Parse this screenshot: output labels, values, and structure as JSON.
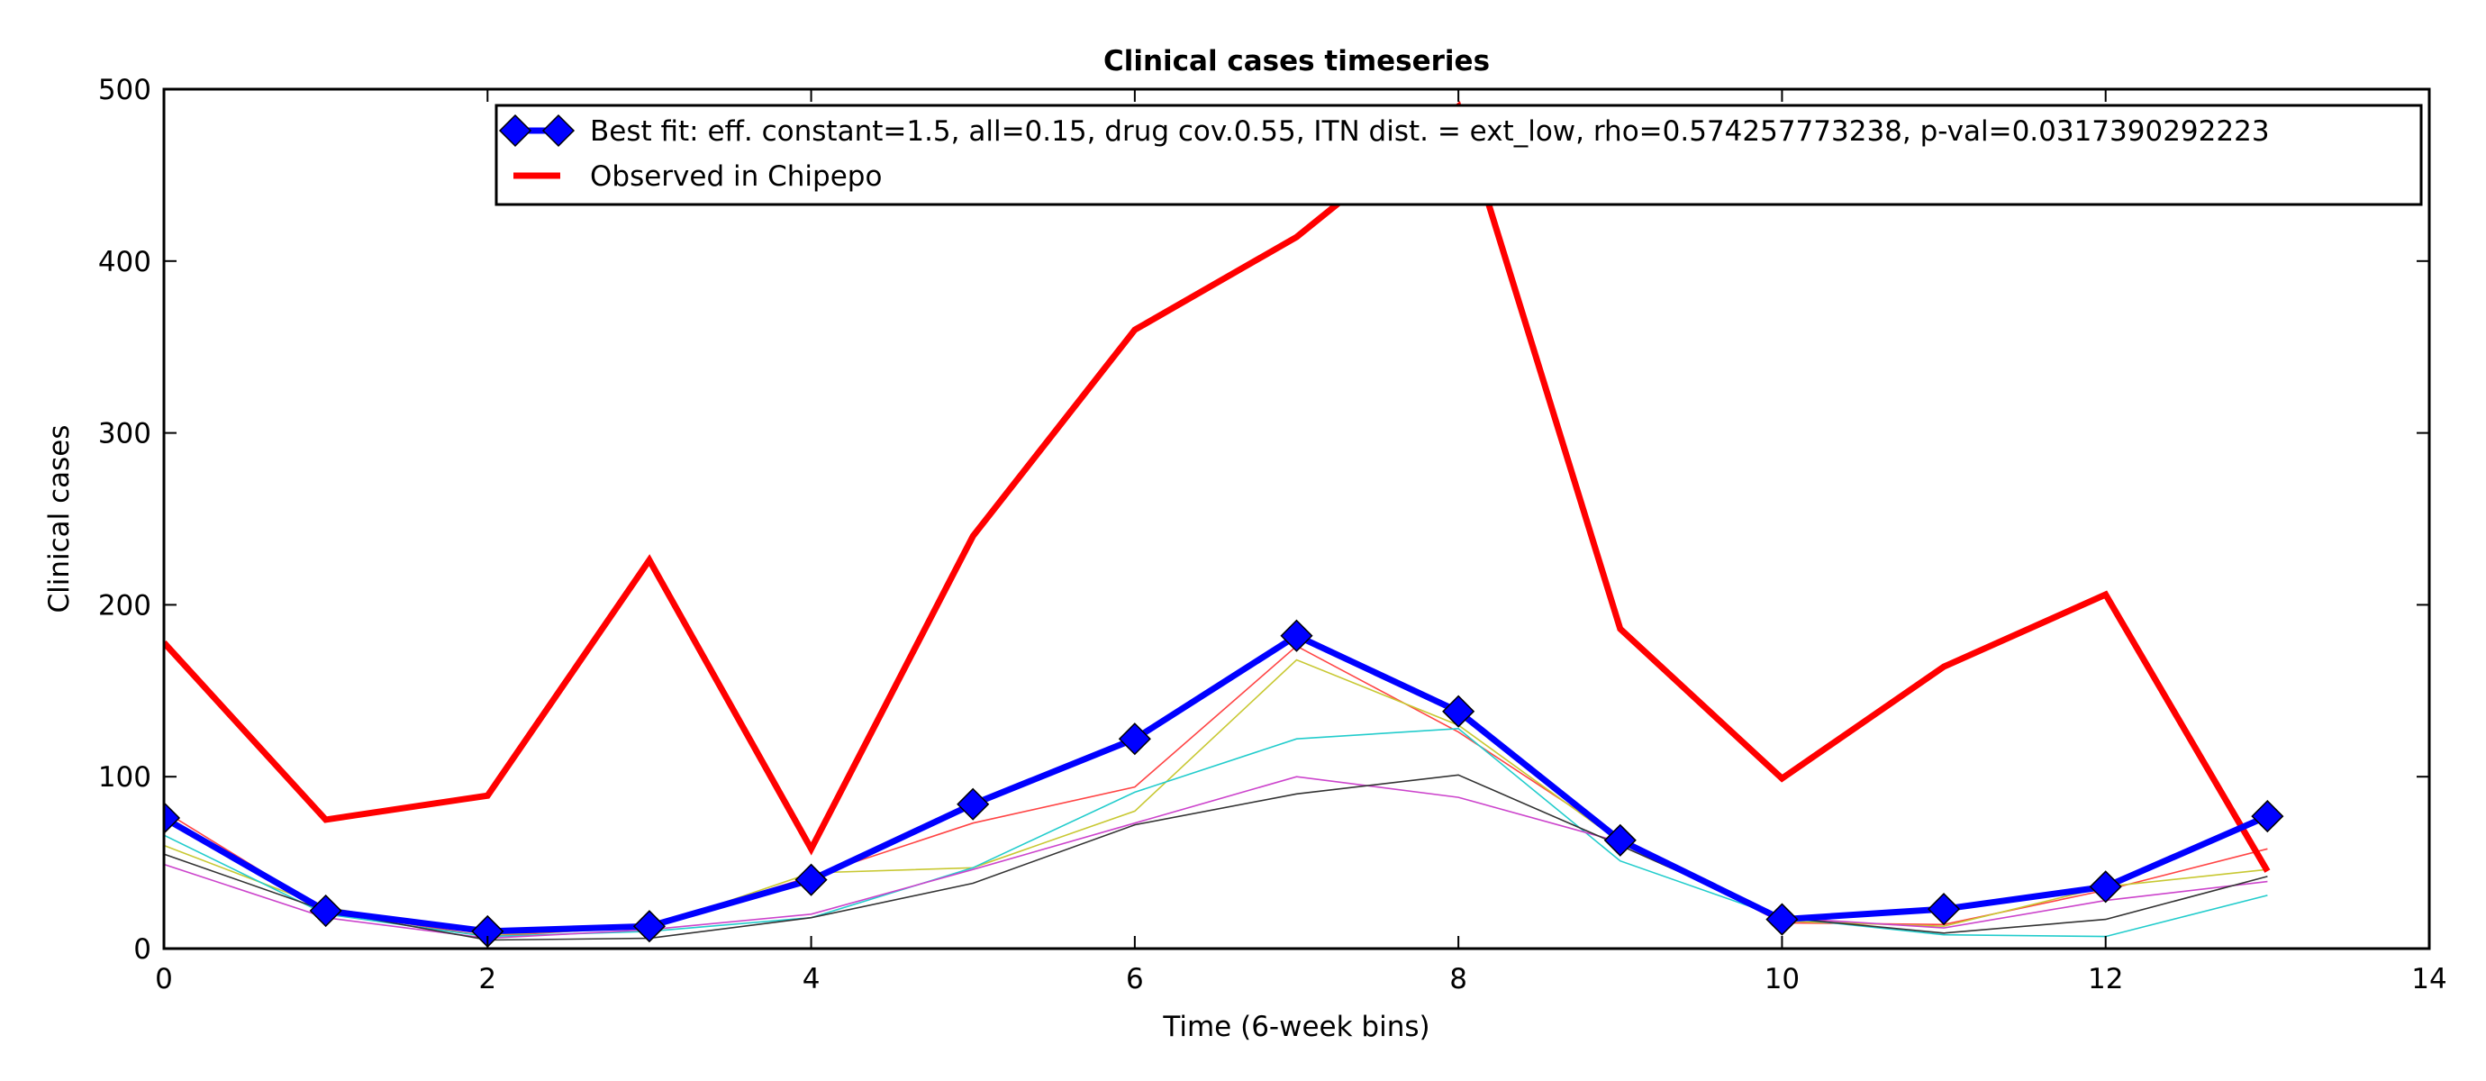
{
  "chart_data": {
    "type": "line",
    "title": "Clinical cases timeseries",
    "xlabel": "Time (6-week bins)",
    "ylabel": "Clinical cases",
    "xlim": [
      0,
      14
    ],
    "ylim": [
      0,
      500
    ],
    "xticks": [
      0,
      2,
      4,
      6,
      8,
      10,
      12,
      14
    ],
    "yticks": [
      0,
      100,
      200,
      300,
      400,
      500
    ],
    "grid": false,
    "legend_position": "top-right",
    "series": [
      {
        "name": "Best fit: eff. constant=1.5, all=0.15, drug cov.0.55, ITN dist. = ext_low, rho=0.574257773238, p-val=0.0317390292223",
        "color": "#0000ff",
        "marker": "diamond",
        "in_legend": true,
        "x": [
          0,
          1,
          2,
          3,
          4,
          5,
          6,
          7,
          8,
          9,
          10,
          11,
          12,
          13
        ],
        "values": [
          76,
          22,
          10,
          13,
          40,
          84,
          122,
          182,
          138,
          63,
          17,
          23,
          36,
          77
        ]
      },
      {
        "name": "Observed in Chipepo",
        "color": "#ff0000",
        "in_legend": true,
        "x": [
          0,
          1,
          2,
          3,
          4,
          5,
          6,
          7,
          8,
          9,
          10,
          11,
          12,
          13
        ],
        "values": [
          178,
          75,
          89,
          226,
          58,
          240,
          360,
          414,
          490,
          186,
          99,
          164,
          206,
          45
        ]
      },
      {
        "color": "#ff4444",
        "in_legend": false,
        "x": [
          0,
          1,
          2,
          3,
          4,
          5,
          6,
          7,
          8,
          9,
          10,
          11,
          12,
          13
        ],
        "values": [
          80,
          22,
          7,
          13,
          42,
          73,
          94,
          176,
          126,
          64,
          15,
          14,
          34,
          58
        ]
      },
      {
        "color": "#c8c832",
        "in_legend": false,
        "x": [
          0,
          1,
          2,
          3,
          4,
          5,
          6,
          7,
          8,
          9,
          10,
          11,
          12,
          13
        ],
        "values": [
          60,
          24,
          8,
          12,
          44,
          47,
          80,
          168,
          130,
          62,
          16,
          13,
          36,
          46
        ]
      },
      {
        "color": "#22cccc",
        "in_legend": false,
        "x": [
          0,
          1,
          2,
          3,
          4,
          5,
          6,
          7,
          8,
          9,
          10,
          11,
          12,
          13
        ],
        "values": [
          66,
          20,
          7,
          10,
          18,
          47,
          91,
          122,
          128,
          51,
          18,
          8,
          7,
          31
        ]
      },
      {
        "color": "#cc44cc",
        "in_legend": false,
        "x": [
          0,
          1,
          2,
          3,
          4,
          5,
          6,
          7,
          8,
          9,
          10,
          11,
          12,
          13
        ],
        "values": [
          49,
          18,
          6,
          11,
          20,
          46,
          73,
          100,
          88,
          62,
          18,
          12,
          28,
          39
        ]
      },
      {
        "color": "#333333",
        "in_legend": false,
        "x": [
          0,
          1,
          2,
          3,
          4,
          5,
          6,
          7,
          8,
          9,
          10,
          11,
          12,
          13
        ],
        "values": [
          55,
          22,
          5,
          6,
          18,
          38,
          72,
          90,
          101,
          60,
          18,
          9,
          17,
          42
        ]
      }
    ]
  }
}
